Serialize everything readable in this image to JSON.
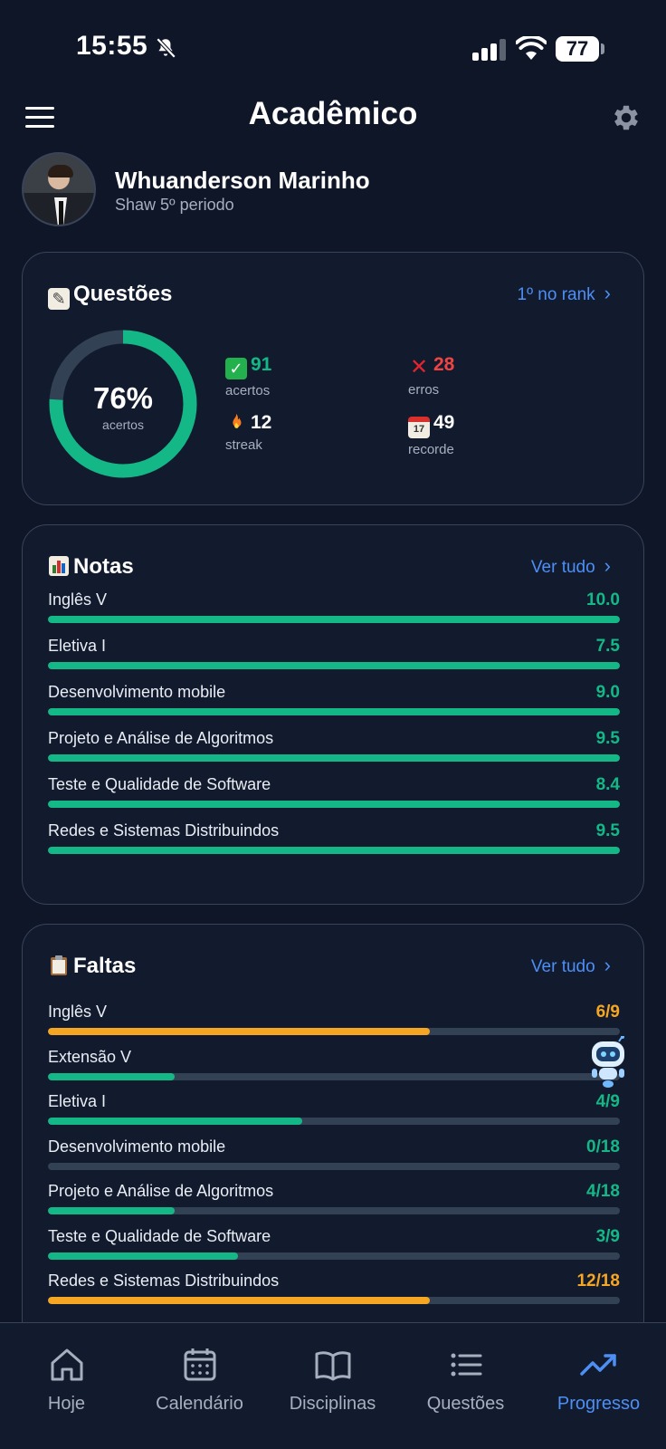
{
  "status_bar": {
    "time": "15:55",
    "battery": "77"
  },
  "header": {
    "title": "Acadêmico"
  },
  "profile": {
    "name": "Whuanderson Marinho",
    "subtitle": "Shaw 5º periodo"
  },
  "questoes": {
    "title": "Questões",
    "link": "1º no rank",
    "percent_text": "76%",
    "percent_value": 76,
    "percent_label": "acertos",
    "stats": {
      "acertos": {
        "value": "91",
        "label": "acertos"
      },
      "erros": {
        "value": "28",
        "label": "erros"
      },
      "streak": {
        "value": "12",
        "label": "streak"
      },
      "recorde": {
        "value": "49",
        "label": "recorde"
      }
    }
  },
  "notas": {
    "title": "Notas",
    "link": "Ver tudo",
    "items": [
      {
        "label": "Inglês V",
        "value": "10.0",
        "fill": 100
      },
      {
        "label": "Eletiva I",
        "value": "7.5",
        "fill": 100
      },
      {
        "label": "Desenvolvimento mobile",
        "value": "9.0",
        "fill": 100
      },
      {
        "label": "Projeto e Análise de Algoritmos",
        "value": "9.5",
        "fill": 100
      },
      {
        "label": "Teste e Qualidade de Software",
        "value": "8.4",
        "fill": 100
      },
      {
        "label": "Redes e Sistemas Distribuindos",
        "value": "9.5",
        "fill": 100
      }
    ]
  },
  "faltas": {
    "title": "Faltas",
    "link": "Ver tudo",
    "items": [
      {
        "label": "Inglês V",
        "value": "6/9",
        "fill": 66.7,
        "color": "#f5a623"
      },
      {
        "label": "Extensão V",
        "value": "",
        "fill": 22.2,
        "color": "#14b886"
      },
      {
        "label": "Eletiva I",
        "value": "4/9",
        "fill": 44.4,
        "color": "#14b886"
      },
      {
        "label": "Desenvolvimento mobile",
        "value": "0/18",
        "fill": 0,
        "color": "#14b886"
      },
      {
        "label": "Projeto e Análise de Algoritmos",
        "value": "4/18",
        "fill": 22.2,
        "color": "#14b886"
      },
      {
        "label": "Teste e Qualidade de Software",
        "value": "3/9",
        "fill": 33.3,
        "color": "#14b886"
      },
      {
        "label": "Redes e Sistemas Distribuindos",
        "value": "12/18",
        "fill": 66.7,
        "color": "#f5a623"
      }
    ]
  },
  "nav": {
    "items": [
      {
        "label": "Hoje",
        "icon": "home-icon"
      },
      {
        "label": "Calendário",
        "icon": "calendar-icon"
      },
      {
        "label": "Disciplinas",
        "icon": "book-icon"
      },
      {
        "label": "Questões",
        "icon": "list-icon"
      },
      {
        "label": "Progresso",
        "icon": "trending-up-icon",
        "active": true
      }
    ]
  },
  "colors": {
    "background": "#0f1628",
    "card": "#121b2e",
    "accent_blue": "#4d8ff5",
    "green": "#14b886",
    "orange": "#f5a623",
    "red": "#ef4444"
  }
}
